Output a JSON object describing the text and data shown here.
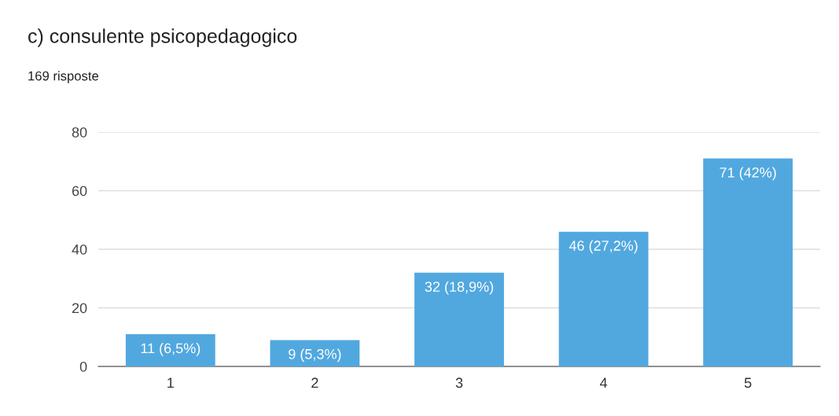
{
  "chart_data": {
    "type": "bar",
    "title": "c) consulente psicopedagogico",
    "subtitle": "169 risposte",
    "categories": [
      "1",
      "2",
      "3",
      "4",
      "5"
    ],
    "values": [
      11,
      9,
      32,
      46,
      71
    ],
    "value_labels": [
      "11 (6,5%)",
      "9 (5,3%)",
      "32 (18,9%)",
      "46 (27,2%)",
      "71 (42%)"
    ],
    "color": "#51a8df",
    "ylim": [
      0,
      80
    ],
    "yticks": [
      0,
      20,
      40,
      60,
      80
    ],
    "grid": "y"
  }
}
